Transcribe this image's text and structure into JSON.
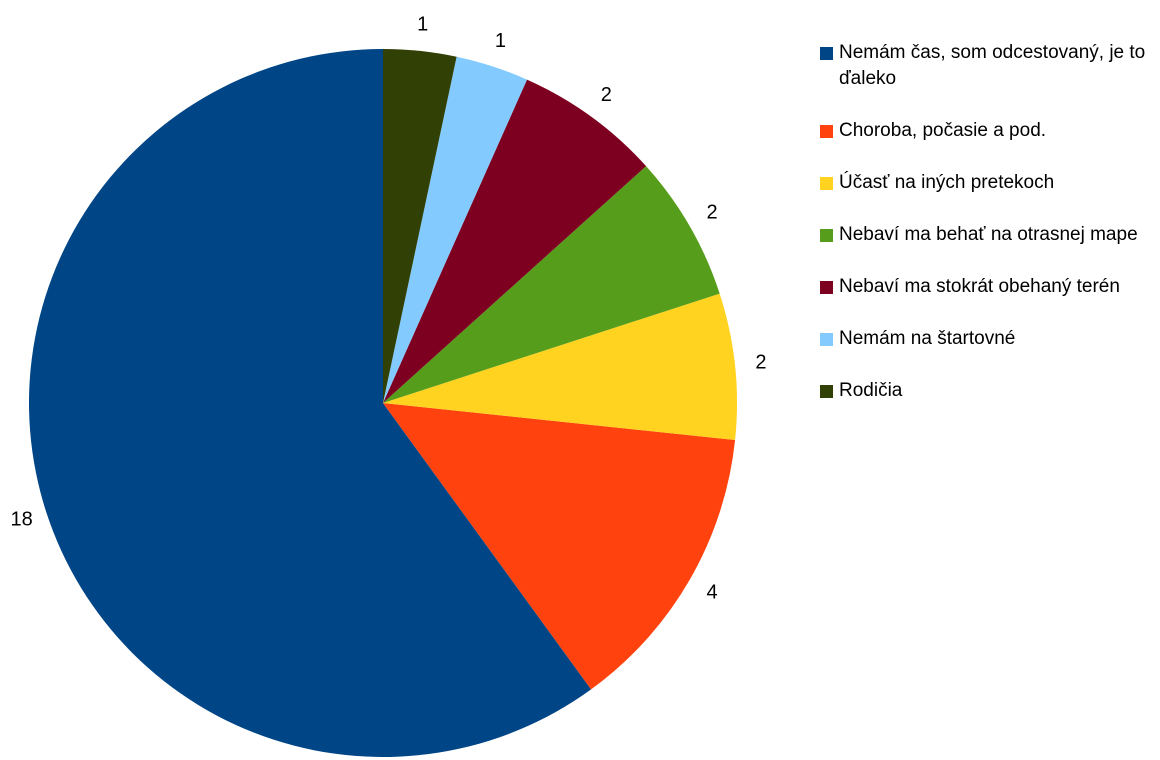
{
  "chart_data": {
    "type": "pie",
    "categories": [
      "Nemám čas, som odcestovaný, je to ďaleko",
      "Choroba, počasie a pod.",
      "Účasť na iných pretekoch",
      "Nebaví ma behať na otrasnej mape",
      "Nebaví ma stokrát obehaný terén",
      "Nemám na štartovné",
      "Rodičia"
    ],
    "values": [
      18,
      4,
      2,
      2,
      2,
      1,
      1
    ],
    "colors": [
      "#004586",
      "#ff420e",
      "#ffd320",
      "#579d1c",
      "#7e0021",
      "#83caff",
      "#314004"
    ],
    "legend": "right"
  }
}
